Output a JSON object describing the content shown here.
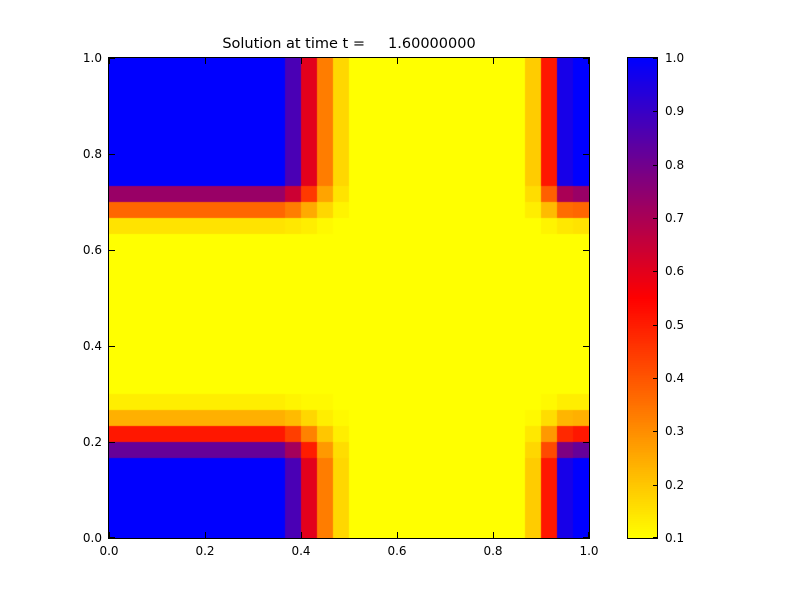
{
  "figure": {
    "background": "#ffffff",
    "title": "Solution at time t =     1.60000000"
  },
  "chart_data": {
    "type": "heatmap",
    "title": "Solution at time t =     1.60000000",
    "xlim": [
      0.0,
      1.0
    ],
    "ylim": [
      0.0,
      1.0
    ],
    "xticks": [
      0.0,
      0.2,
      0.4,
      0.6,
      0.8,
      1.0
    ],
    "xtick_labels": [
      "0.0",
      "0.2",
      "0.4",
      "0.6",
      "0.8",
      "1.0"
    ],
    "yticks": [
      0.0,
      0.2,
      0.4,
      0.6,
      0.8,
      1.0
    ],
    "ytick_labels": [
      "0.0",
      "0.2",
      "0.4",
      "0.6",
      "0.8",
      "1.0"
    ],
    "grid": false,
    "legend": "none",
    "nx": 30,
    "ny": 30,
    "vmin": 0.1,
    "vmax": 1.0,
    "colormap_stops": [
      {
        "t": 0.0,
        "color": "#ffff00"
      },
      {
        "t": 0.5,
        "color": "#ff0000"
      },
      {
        "t": 1.0,
        "color": "#0000ff"
      }
    ],
    "colorbar": {
      "position": "right",
      "ticks": [
        0.1,
        0.2,
        0.3,
        0.4,
        0.5,
        0.6,
        0.7,
        0.8,
        0.9,
        1.0
      ],
      "tick_labels": [
        "0.1",
        "0.2",
        "0.3",
        "0.4",
        "0.5",
        "0.6",
        "0.7",
        "0.8",
        "0.9",
        "1.0"
      ]
    },
    "values_row_order": "bottom-to-top",
    "values": [
      [
        1.0,
        1.0,
        1.0,
        1.0,
        1.0,
        1.0,
        1.0,
        1.0,
        1.0,
        1.0,
        1.0,
        0.87,
        0.6,
        0.33,
        0.17,
        0.1,
        0.1,
        0.1,
        0.1,
        0.1,
        0.1,
        0.1,
        0.1,
        0.1,
        0.1,
        0.1,
        0.19,
        0.51,
        0.96,
        1.0
      ],
      [
        1.0,
        1.0,
        1.0,
        1.0,
        1.0,
        1.0,
        1.0,
        1.0,
        1.0,
        1.0,
        1.0,
        0.87,
        0.6,
        0.33,
        0.17,
        0.1,
        0.1,
        0.1,
        0.1,
        0.1,
        0.1,
        0.1,
        0.1,
        0.1,
        0.1,
        0.1,
        0.19,
        0.51,
        0.96,
        1.0
      ],
      [
        1.0,
        1.0,
        1.0,
        1.0,
        1.0,
        1.0,
        1.0,
        1.0,
        1.0,
        1.0,
        1.0,
        0.87,
        0.6,
        0.33,
        0.17,
        0.1,
        0.1,
        0.1,
        0.1,
        0.1,
        0.1,
        0.1,
        0.1,
        0.1,
        0.1,
        0.1,
        0.19,
        0.51,
        0.96,
        1.0
      ],
      [
        1.0,
        1.0,
        1.0,
        1.0,
        1.0,
        1.0,
        1.0,
        1.0,
        1.0,
        1.0,
        1.0,
        0.87,
        0.6,
        0.33,
        0.17,
        0.1,
        0.1,
        0.1,
        0.1,
        0.1,
        0.1,
        0.1,
        0.1,
        0.1,
        0.1,
        0.1,
        0.19,
        0.51,
        0.96,
        1.0
      ],
      [
        1.0,
        1.0,
        1.0,
        1.0,
        1.0,
        1.0,
        1.0,
        1.0,
        1.0,
        1.0,
        1.0,
        0.87,
        0.6,
        0.33,
        0.17,
        0.1,
        0.1,
        0.1,
        0.1,
        0.1,
        0.1,
        0.1,
        0.1,
        0.1,
        0.1,
        0.1,
        0.19,
        0.51,
        0.96,
        1.0
      ],
      [
        0.82,
        0.82,
        0.82,
        0.82,
        0.82,
        0.82,
        0.82,
        0.82,
        0.82,
        0.82,
        0.82,
        0.71,
        0.5,
        0.28,
        0.16,
        0.1,
        0.1,
        0.1,
        0.1,
        0.1,
        0.1,
        0.1,
        0.1,
        0.1,
        0.1,
        0.1,
        0.17,
        0.42,
        0.78,
        0.82
      ],
      [
        0.51,
        0.51,
        0.51,
        0.51,
        0.51,
        0.51,
        0.51,
        0.51,
        0.51,
        0.51,
        0.51,
        0.44,
        0.32,
        0.2,
        0.13,
        0.1,
        0.1,
        0.1,
        0.1,
        0.1,
        0.1,
        0.1,
        0.1,
        0.1,
        0.1,
        0.1,
        0.14,
        0.28,
        0.48,
        0.51
      ],
      [
        0.24,
        0.24,
        0.24,
        0.24,
        0.24,
        0.24,
        0.24,
        0.24,
        0.24,
        0.24,
        0.24,
        0.22,
        0.17,
        0.13,
        0.11,
        0.1,
        0.1,
        0.1,
        0.1,
        0.1,
        0.1,
        0.1,
        0.1,
        0.1,
        0.1,
        0.1,
        0.11,
        0.16,
        0.23,
        0.24
      ],
      [
        0.13,
        0.13,
        0.13,
        0.13,
        0.13,
        0.13,
        0.13,
        0.13,
        0.13,
        0.13,
        0.13,
        0.12,
        0.11,
        0.11,
        0.1,
        0.1,
        0.1,
        0.1,
        0.1,
        0.1,
        0.1,
        0.1,
        0.1,
        0.1,
        0.1,
        0.1,
        0.1,
        0.11,
        0.13,
        0.13
      ],
      [
        0.1,
        0.1,
        0.1,
        0.1,
        0.1,
        0.1,
        0.1,
        0.1,
        0.1,
        0.1,
        0.1,
        0.1,
        0.1,
        0.1,
        0.1,
        0.1,
        0.1,
        0.1,
        0.1,
        0.1,
        0.1,
        0.1,
        0.1,
        0.1,
        0.1,
        0.1,
        0.1,
        0.1,
        0.1,
        0.1
      ],
      [
        0.1,
        0.1,
        0.1,
        0.1,
        0.1,
        0.1,
        0.1,
        0.1,
        0.1,
        0.1,
        0.1,
        0.1,
        0.1,
        0.1,
        0.1,
        0.1,
        0.1,
        0.1,
        0.1,
        0.1,
        0.1,
        0.1,
        0.1,
        0.1,
        0.1,
        0.1,
        0.1,
        0.1,
        0.1,
        0.1
      ],
      [
        0.1,
        0.1,
        0.1,
        0.1,
        0.1,
        0.1,
        0.1,
        0.1,
        0.1,
        0.1,
        0.1,
        0.1,
        0.1,
        0.1,
        0.1,
        0.1,
        0.1,
        0.1,
        0.1,
        0.1,
        0.1,
        0.1,
        0.1,
        0.1,
        0.1,
        0.1,
        0.1,
        0.1,
        0.1,
        0.1
      ],
      [
        0.1,
        0.1,
        0.1,
        0.1,
        0.1,
        0.1,
        0.1,
        0.1,
        0.1,
        0.1,
        0.1,
        0.1,
        0.1,
        0.1,
        0.1,
        0.1,
        0.1,
        0.1,
        0.1,
        0.1,
        0.1,
        0.1,
        0.1,
        0.1,
        0.1,
        0.1,
        0.1,
        0.1,
        0.1,
        0.1
      ],
      [
        0.1,
        0.1,
        0.1,
        0.1,
        0.1,
        0.1,
        0.1,
        0.1,
        0.1,
        0.1,
        0.1,
        0.1,
        0.1,
        0.1,
        0.1,
        0.1,
        0.1,
        0.1,
        0.1,
        0.1,
        0.1,
        0.1,
        0.1,
        0.1,
        0.1,
        0.1,
        0.1,
        0.1,
        0.1,
        0.1
      ],
      [
        0.1,
        0.1,
        0.1,
        0.1,
        0.1,
        0.1,
        0.1,
        0.1,
        0.1,
        0.1,
        0.1,
        0.1,
        0.1,
        0.1,
        0.1,
        0.1,
        0.1,
        0.1,
        0.1,
        0.1,
        0.1,
        0.1,
        0.1,
        0.1,
        0.1,
        0.1,
        0.1,
        0.1,
        0.1,
        0.1
      ],
      [
        0.1,
        0.1,
        0.1,
        0.1,
        0.1,
        0.1,
        0.1,
        0.1,
        0.1,
        0.1,
        0.1,
        0.1,
        0.1,
        0.1,
        0.1,
        0.1,
        0.1,
        0.1,
        0.1,
        0.1,
        0.1,
        0.1,
        0.1,
        0.1,
        0.1,
        0.1,
        0.1,
        0.1,
        0.1,
        0.1
      ],
      [
        0.1,
        0.1,
        0.1,
        0.1,
        0.1,
        0.1,
        0.1,
        0.1,
        0.1,
        0.1,
        0.1,
        0.1,
        0.1,
        0.1,
        0.1,
        0.1,
        0.1,
        0.1,
        0.1,
        0.1,
        0.1,
        0.1,
        0.1,
        0.1,
        0.1,
        0.1,
        0.1,
        0.1,
        0.1,
        0.1
      ],
      [
        0.1,
        0.1,
        0.1,
        0.1,
        0.1,
        0.1,
        0.1,
        0.1,
        0.1,
        0.1,
        0.1,
        0.1,
        0.1,
        0.1,
        0.1,
        0.1,
        0.1,
        0.1,
        0.1,
        0.1,
        0.1,
        0.1,
        0.1,
        0.1,
        0.1,
        0.1,
        0.1,
        0.1,
        0.1,
        0.1
      ],
      [
        0.1,
        0.1,
        0.1,
        0.1,
        0.1,
        0.1,
        0.1,
        0.1,
        0.1,
        0.1,
        0.1,
        0.1,
        0.1,
        0.1,
        0.1,
        0.1,
        0.1,
        0.1,
        0.1,
        0.1,
        0.1,
        0.1,
        0.1,
        0.1,
        0.1,
        0.1,
        0.1,
        0.1,
        0.1,
        0.1
      ],
      [
        0.15,
        0.15,
        0.15,
        0.15,
        0.15,
        0.15,
        0.15,
        0.15,
        0.15,
        0.15,
        0.15,
        0.14,
        0.13,
        0.11,
        0.1,
        0.1,
        0.1,
        0.1,
        0.1,
        0.1,
        0.1,
        0.1,
        0.1,
        0.1,
        0.1,
        0.1,
        0.1,
        0.12,
        0.14,
        0.15
      ],
      [
        0.37,
        0.37,
        0.37,
        0.37,
        0.37,
        0.37,
        0.37,
        0.37,
        0.37,
        0.37,
        0.37,
        0.33,
        0.25,
        0.17,
        0.12,
        0.1,
        0.1,
        0.1,
        0.1,
        0.1,
        0.1,
        0.1,
        0.1,
        0.1,
        0.1,
        0.1,
        0.13,
        0.22,
        0.36,
        0.37
      ],
      [
        0.73,
        0.73,
        0.73,
        0.73,
        0.73,
        0.73,
        0.73,
        0.73,
        0.73,
        0.73,
        0.73,
        0.64,
        0.45,
        0.26,
        0.15,
        0.1,
        0.1,
        0.1,
        0.1,
        0.1,
        0.1,
        0.1,
        0.1,
        0.1,
        0.1,
        0.1,
        0.16,
        0.38,
        0.7,
        0.73
      ],
      [
        1.0,
        1.0,
        1.0,
        1.0,
        1.0,
        1.0,
        1.0,
        1.0,
        1.0,
        1.0,
        1.0,
        0.87,
        0.6,
        0.33,
        0.17,
        0.1,
        0.1,
        0.1,
        0.1,
        0.1,
        0.1,
        0.1,
        0.1,
        0.1,
        0.1,
        0.1,
        0.19,
        0.51,
        0.96,
        1.0
      ],
      [
        1.0,
        1.0,
        1.0,
        1.0,
        1.0,
        1.0,
        1.0,
        1.0,
        1.0,
        1.0,
        1.0,
        0.87,
        0.6,
        0.33,
        0.17,
        0.1,
        0.1,
        0.1,
        0.1,
        0.1,
        0.1,
        0.1,
        0.1,
        0.1,
        0.1,
        0.1,
        0.19,
        0.51,
        0.96,
        1.0
      ],
      [
        1.0,
        1.0,
        1.0,
        1.0,
        1.0,
        1.0,
        1.0,
        1.0,
        1.0,
        1.0,
        1.0,
        0.87,
        0.6,
        0.33,
        0.17,
        0.1,
        0.1,
        0.1,
        0.1,
        0.1,
        0.1,
        0.1,
        0.1,
        0.1,
        0.1,
        0.1,
        0.19,
        0.51,
        0.96,
        1.0
      ],
      [
        1.0,
        1.0,
        1.0,
        1.0,
        1.0,
        1.0,
        1.0,
        1.0,
        1.0,
        1.0,
        1.0,
        0.87,
        0.6,
        0.33,
        0.17,
        0.1,
        0.1,
        0.1,
        0.1,
        0.1,
        0.1,
        0.1,
        0.1,
        0.1,
        0.1,
        0.1,
        0.19,
        0.51,
        0.96,
        1.0
      ],
      [
        1.0,
        1.0,
        1.0,
        1.0,
        1.0,
        1.0,
        1.0,
        1.0,
        1.0,
        1.0,
        1.0,
        0.87,
        0.6,
        0.33,
        0.17,
        0.1,
        0.1,
        0.1,
        0.1,
        0.1,
        0.1,
        0.1,
        0.1,
        0.1,
        0.1,
        0.1,
        0.19,
        0.51,
        0.96,
        1.0
      ],
      [
        1.0,
        1.0,
        1.0,
        1.0,
        1.0,
        1.0,
        1.0,
        1.0,
        1.0,
        1.0,
        1.0,
        0.87,
        0.6,
        0.33,
        0.17,
        0.1,
        0.1,
        0.1,
        0.1,
        0.1,
        0.1,
        0.1,
        0.1,
        0.1,
        0.1,
        0.1,
        0.19,
        0.51,
        0.96,
        1.0
      ],
      [
        1.0,
        1.0,
        1.0,
        1.0,
        1.0,
        1.0,
        1.0,
        1.0,
        1.0,
        1.0,
        1.0,
        0.87,
        0.6,
        0.33,
        0.17,
        0.1,
        0.1,
        0.1,
        0.1,
        0.1,
        0.1,
        0.1,
        0.1,
        0.1,
        0.1,
        0.1,
        0.19,
        0.51,
        0.96,
        1.0
      ],
      [
        1.0,
        1.0,
        1.0,
        1.0,
        1.0,
        1.0,
        1.0,
        1.0,
        1.0,
        1.0,
        1.0,
        0.87,
        0.6,
        0.33,
        0.17,
        0.1,
        0.1,
        0.1,
        0.1,
        0.1,
        0.1,
        0.1,
        0.1,
        0.1,
        0.1,
        0.1,
        0.19,
        0.51,
        0.96,
        1.0
      ]
    ]
  }
}
